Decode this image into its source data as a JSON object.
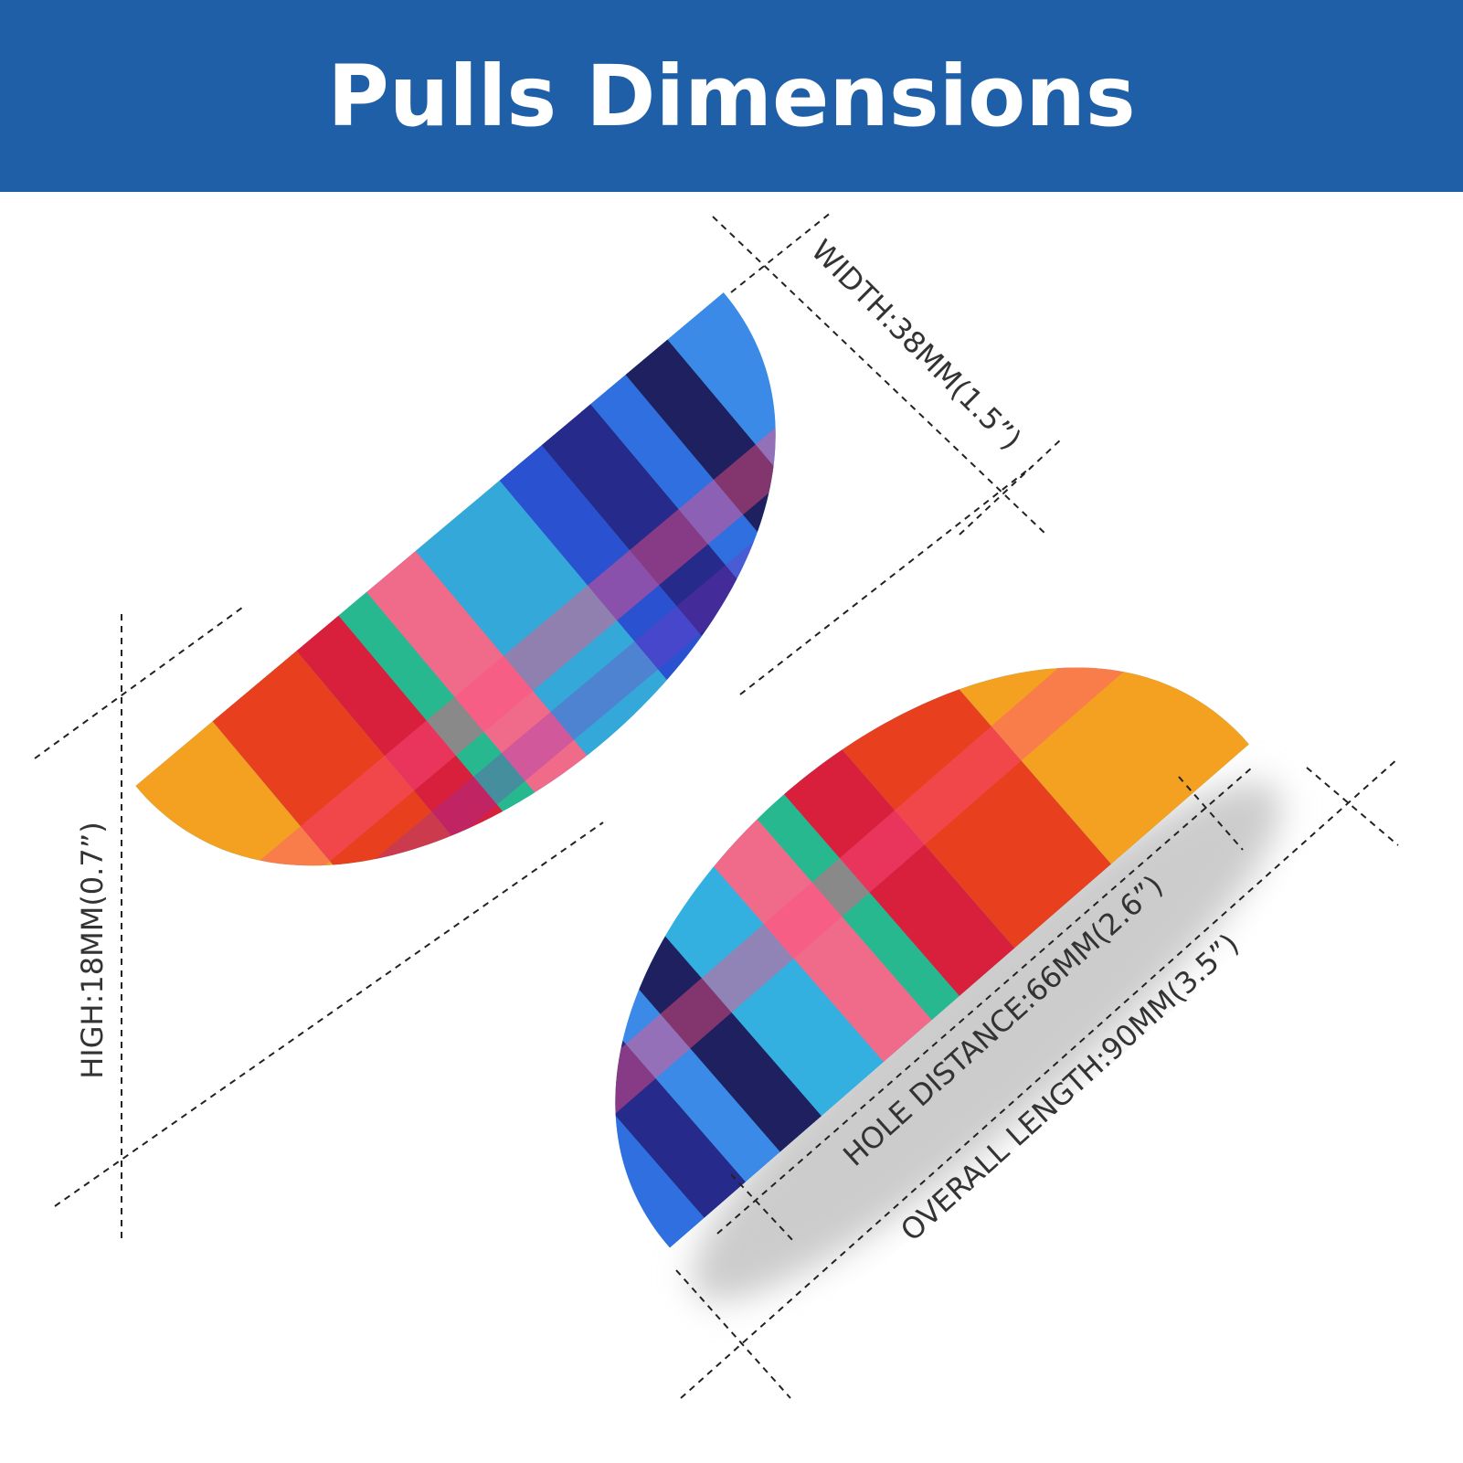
{
  "header": {
    "title": "Pulls Dimensions"
  },
  "dimensions": {
    "width": "WIDTH:38MM(1.5”)",
    "height": "HIGH:18MM(0.7”)",
    "hole_distance": "HOLE DISTANCE:66MM(2.6”)",
    "overall_length": "OVERALL LENGTH:90MM(3.5”)"
  }
}
